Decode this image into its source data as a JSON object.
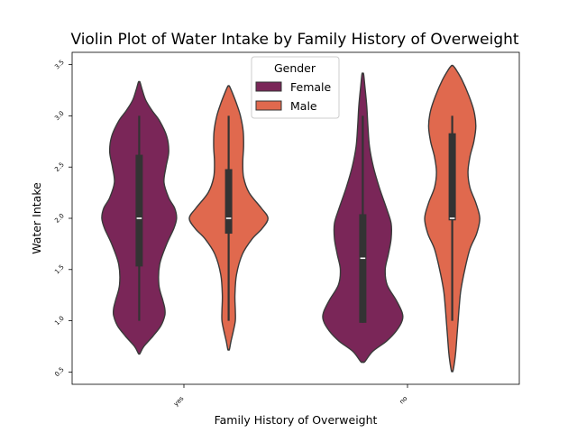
{
  "chart_data": {
    "type": "violin",
    "title": "Violin Plot of Water Intake by Family History of Overweight",
    "xlabel": "Family History of Overweight",
    "ylabel": "Water Intake",
    "categories": [
      "yes",
      "no"
    ],
    "ylim": [
      0.38,
      3.62
    ],
    "yticks": [
      0.5,
      1.0,
      1.5,
      2.0,
      2.5,
      3.0,
      3.5
    ],
    "ytick_labels": [
      "0.5",
      "1.0",
      "1.5",
      "2.0",
      "2.5",
      "3.0",
      "3.5"
    ],
    "tick_label_rotation": 45,
    "grid": false,
    "legend": {
      "title": "Gender",
      "placement": "top-center"
    },
    "series": [
      {
        "name": "Female",
        "color": "#7a2658",
        "violins": [
          {
            "category": "yes",
            "ymin": 0.68,
            "ymax": 3.33,
            "profile": [
              [
                0.68,
                0.02
              ],
              [
                0.75,
                0.12
              ],
              [
                0.85,
                0.35
              ],
              [
                0.95,
                0.55
              ],
              [
                1.05,
                0.65
              ],
              [
                1.12,
                0.65
              ],
              [
                1.2,
                0.6
              ],
              [
                1.35,
                0.5
              ],
              [
                1.55,
                0.52
              ],
              [
                1.75,
                0.7
              ],
              [
                1.9,
                0.88
              ],
              [
                2.0,
                0.95
              ],
              [
                2.1,
                0.9
              ],
              [
                2.2,
                0.75
              ],
              [
                2.35,
                0.63
              ],
              [
                2.5,
                0.68
              ],
              [
                2.65,
                0.75
              ],
              [
                2.8,
                0.7
              ],
              [
                2.95,
                0.52
              ],
              [
                3.05,
                0.33
              ],
              [
                3.15,
                0.17
              ],
              [
                3.25,
                0.08
              ],
              [
                3.33,
                0.02
              ]
            ],
            "q1": 1.53,
            "median": 2.0,
            "q3": 2.62,
            "whisker_low": 1.0,
            "whisker_high": 3.0
          },
          {
            "category": "no",
            "ymin": 0.6,
            "ymax": 3.41,
            "profile": [
              [
                0.6,
                0.05
              ],
              [
                0.7,
                0.25
              ],
              [
                0.8,
                0.6
              ],
              [
                0.9,
                0.85
              ],
              [
                1.0,
                1.0
              ],
              [
                1.08,
                1.0
              ],
              [
                1.2,
                0.85
              ],
              [
                1.35,
                0.62
              ],
              [
                1.5,
                0.57
              ],
              [
                1.65,
                0.65
              ],
              [
                1.8,
                0.72
              ],
              [
                1.95,
                0.72
              ],
              [
                2.1,
                0.6
              ],
              [
                2.3,
                0.42
              ],
              [
                2.5,
                0.27
              ],
              [
                2.7,
                0.17
              ],
              [
                2.9,
                0.13
              ],
              [
                3.1,
                0.1
              ],
              [
                3.3,
                0.05
              ],
              [
                3.41,
                0.02
              ]
            ],
            "q1": 0.98,
            "median": 1.61,
            "q3": 2.04,
            "whisker_low": 0.98,
            "whisker_high": 3.0
          }
        ]
      },
      {
        "name": "Male",
        "color": "#e0694e",
        "violins": [
          {
            "category": "yes",
            "ymin": 0.72,
            "ymax": 3.29,
            "profile": [
              [
                0.72,
                0.02
              ],
              [
                0.8,
                0.06
              ],
              [
                0.9,
                0.12
              ],
              [
                1.0,
                0.17
              ],
              [
                1.1,
                0.17
              ],
              [
                1.25,
                0.16
              ],
              [
                1.45,
                0.2
              ],
              [
                1.65,
                0.35
              ],
              [
                1.8,
                0.6
              ],
              [
                1.9,
                0.85
              ],
              [
                2.0,
                1.0
              ],
              [
                2.1,
                0.83
              ],
              [
                2.25,
                0.52
              ],
              [
                2.4,
                0.38
              ],
              [
                2.55,
                0.36
              ],
              [
                2.7,
                0.38
              ],
              [
                2.85,
                0.37
              ],
              [
                3.0,
                0.3
              ],
              [
                3.12,
                0.2
              ],
              [
                3.22,
                0.1
              ],
              [
                3.29,
                0.02
              ]
            ],
            "q1": 1.85,
            "median": 2.0,
            "q3": 2.48,
            "whisker_low": 1.0,
            "whisker_high": 3.0
          },
          {
            "category": "no",
            "ymin": 0.51,
            "ymax": 3.49,
            "profile": [
              [
                0.51,
                0.02
              ],
              [
                0.6,
                0.06
              ],
              [
                0.7,
                0.09
              ],
              [
                0.85,
                0.12
              ],
              [
                1.0,
                0.15
              ],
              [
                1.15,
                0.18
              ],
              [
                1.3,
                0.22
              ],
              [
                1.5,
                0.32
              ],
              [
                1.7,
                0.45
              ],
              [
                1.85,
                0.62
              ],
              [
                2.0,
                0.7
              ],
              [
                2.15,
                0.6
              ],
              [
                2.3,
                0.45
              ],
              [
                2.45,
                0.4
              ],
              [
                2.6,
                0.45
              ],
              [
                2.75,
                0.55
              ],
              [
                2.9,
                0.6
              ],
              [
                3.05,
                0.55
              ],
              [
                3.2,
                0.42
              ],
              [
                3.35,
                0.25
              ],
              [
                3.45,
                0.1
              ],
              [
                3.49,
                0.02
              ]
            ],
            "q1": 1.98,
            "median": 2.0,
            "q3": 2.83,
            "whisker_low": 1.0,
            "whisker_high": 3.0
          }
        ]
      }
    ]
  }
}
